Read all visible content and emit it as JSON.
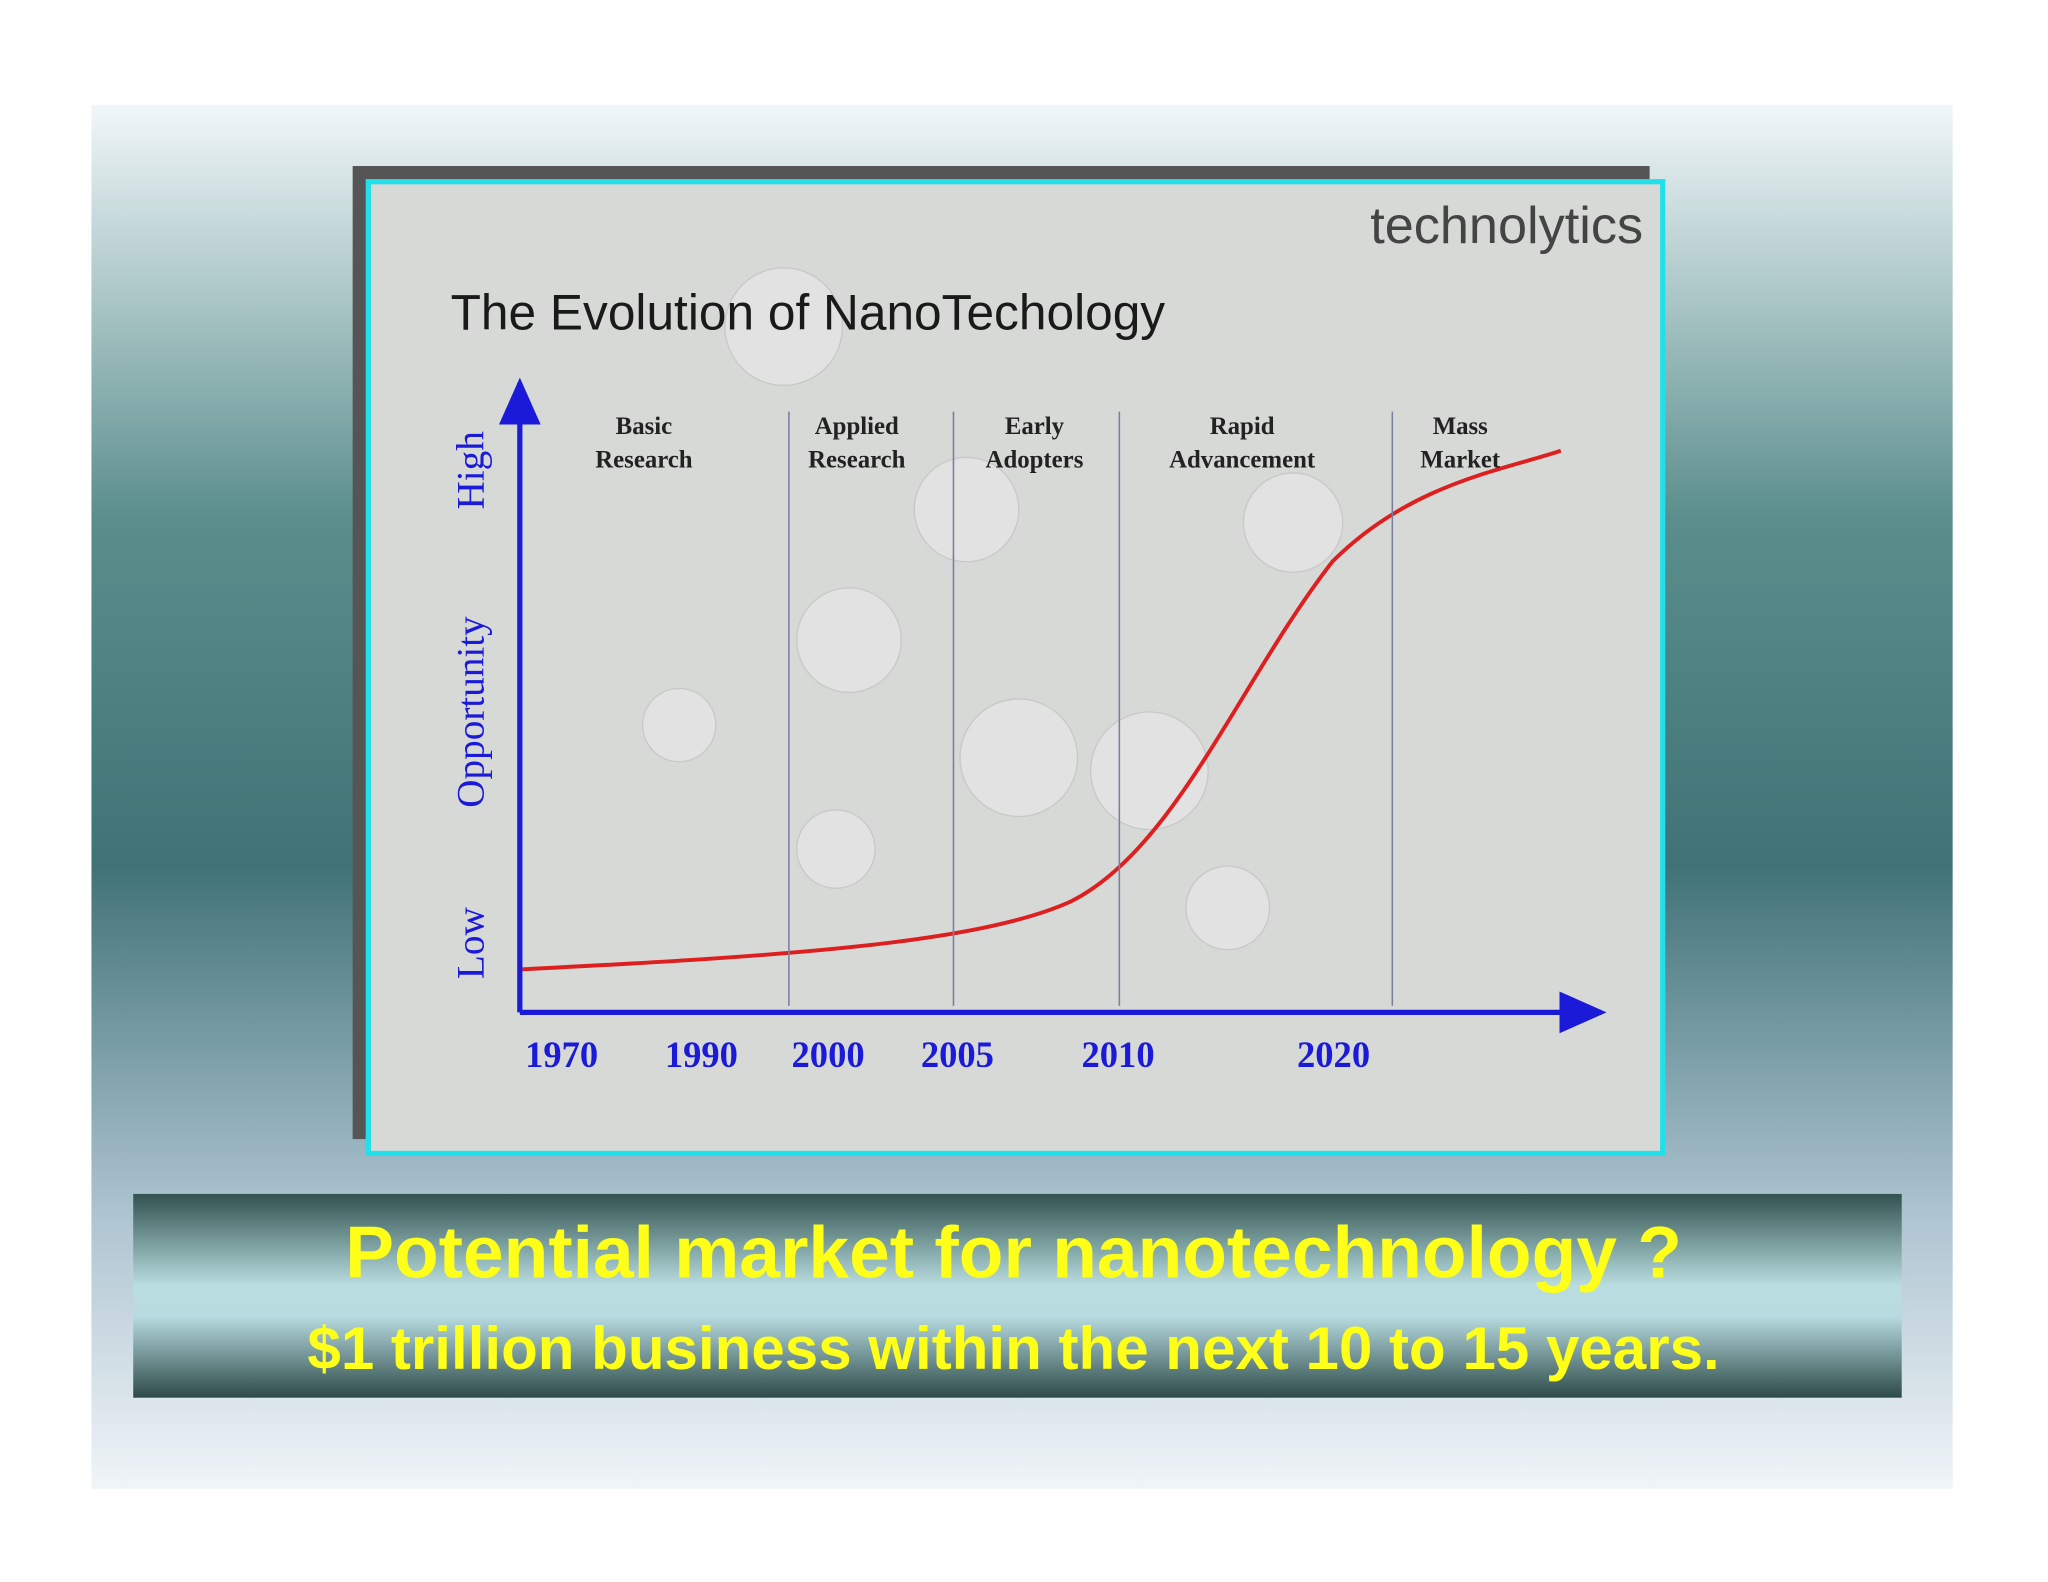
{
  "header": {
    "brand": "technolytics",
    "title": "The Evolution of NanoTechology"
  },
  "diagram": {
    "y_axis_labels": [
      "Low",
      "Opportunity",
      "High"
    ],
    "stages": [
      {
        "lines": [
          "Basic",
          "Research"
        ]
      },
      {
        "lines": [
          "Applied",
          "Research"
        ]
      },
      {
        "lines": [
          "Early",
          "Adopters"
        ]
      },
      {
        "lines": [
          "Rapid",
          "Advancement"
        ]
      },
      {
        "lines": [
          "Mass",
          "Market"
        ]
      }
    ],
    "x_labels": [
      "1970",
      "1990",
      "2000",
      "2005",
      "2010",
      "2020"
    ]
  },
  "caption": {
    "lines": [
      "Potential market for nanotechnology ?",
      "$1 trillion business within the next 10 to 15 years."
    ]
  }
}
